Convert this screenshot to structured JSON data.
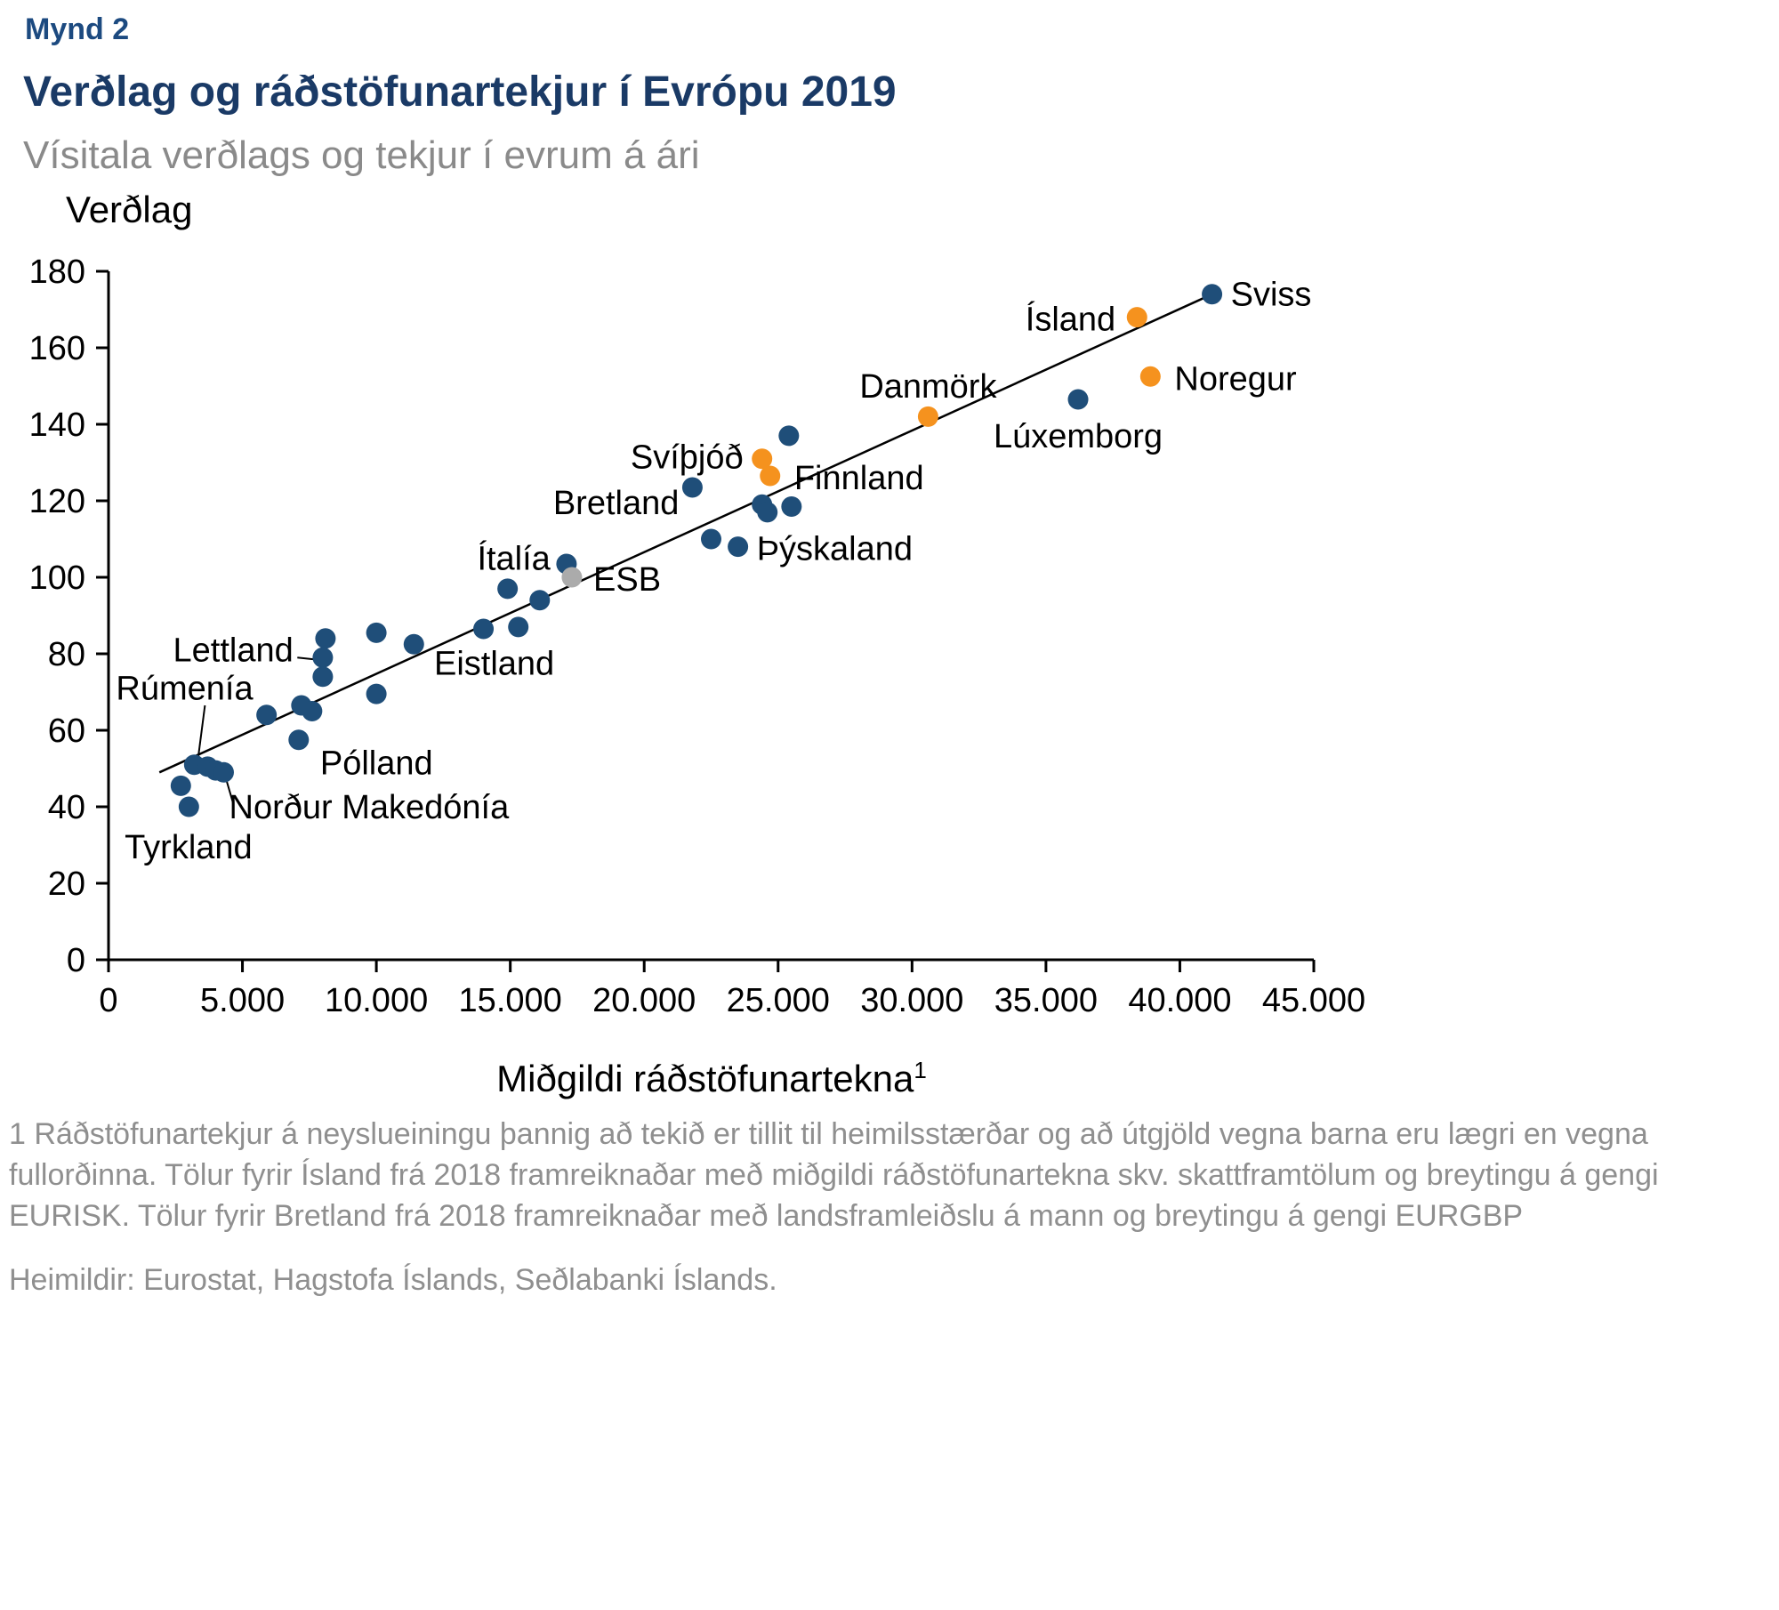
{
  "header": {
    "figure_label": "Mynd 2",
    "title": "Verðlag og ráðstöfunartekjur í Evrópu 2019",
    "subtitle": "Vísitala verðlags og tekjur í evrum á ári"
  },
  "footer": {
    "footnote": "1 Ráðstöfunartekjur á neyslueiningu þannig að tekið er tillit til heimilsstærðar og að útgjöld vegna barna eru lægri en vegna fullorðinna. Tölur fyrir Ísland frá 2018 framreiknaðar með miðgildi ráðstöfunartekna skv. skattframtölum og breytingu á gengi EURISK. Tölur fyrir Bretland frá 2018 framreiknaðar með landsframleiðslu á mann og breytingu á gengi EURGBP",
    "sources": "Heimildir: Eurostat, Hagstofa Íslands, Seðlabanki Íslands."
  },
  "chart_data": {
    "type": "scatter",
    "title": "Verðlag og ráðstöfunartekjur í Evrópu 2019",
    "subtitle": "Vísitala verðlags og tekjur í evrum á ári",
    "ylabel": "Verðlag",
    "xlabel": "Miðgildi ráðstöfunartekna",
    "xlabel_superscript": "1",
    "xlim": [
      0,
      45000
    ],
    "ylim": [
      0,
      180
    ],
    "x_ticks": [
      0,
      5000,
      10000,
      15000,
      20000,
      25000,
      30000,
      35000,
      40000,
      45000
    ],
    "x_tick_labels": [
      "0",
      "5.000",
      "10.000",
      "15.000",
      "20.000",
      "25.000",
      "30.000",
      "35.000",
      "40.000",
      "45.000"
    ],
    "y_ticks": [
      0,
      20,
      40,
      60,
      80,
      100,
      120,
      140,
      160,
      180
    ],
    "colors": {
      "default": "#1f4e79",
      "nordic": "#f5921e",
      "esb": "#ababab",
      "trend": "#000000"
    },
    "trendline": {
      "x1": 1900,
      "y1": 49,
      "x2": 41200,
      "y2": 174
    },
    "points": [
      {
        "label": "Tyrkland",
        "x": 3000,
        "y": 40,
        "color": "default"
      },
      {
        "label": null,
        "x": 2700,
        "y": 45.5,
        "color": "default"
      },
      {
        "label": "Rúmenía",
        "x": 3200,
        "y": 51,
        "color": "default"
      },
      {
        "label": null,
        "x": 3700,
        "y": 50.5,
        "color": "default"
      },
      {
        "label": null,
        "x": 4000,
        "y": 49.5,
        "color": "default"
      },
      {
        "label": "Norður Makedónía",
        "x": 4300,
        "y": 49,
        "color": "default"
      },
      {
        "label": null,
        "x": 5900,
        "y": 64,
        "color": "default"
      },
      {
        "label": null,
        "x": 7200,
        "y": 66.5,
        "color": "default"
      },
      {
        "label": null,
        "x": 7600,
        "y": 65,
        "color": "default"
      },
      {
        "label": "Pólland",
        "x": 7100,
        "y": 57.5,
        "color": "default"
      },
      {
        "label": null,
        "x": 8100,
        "y": 84,
        "color": "default"
      },
      {
        "label": "Lettland",
        "x": 8000,
        "y": 79,
        "color": "default"
      },
      {
        "label": null,
        "x": 8000,
        "y": 74,
        "color": "default"
      },
      {
        "label": null,
        "x": 10000,
        "y": 85.5,
        "color": "default"
      },
      {
        "label": null,
        "x": 10000,
        "y": 69.5,
        "color": "default"
      },
      {
        "label": null,
        "x": 11400,
        "y": 82.5,
        "color": "default"
      },
      {
        "label": "Eistland",
        "x": 14000,
        "y": 86.5,
        "color": "default"
      },
      {
        "label": null,
        "x": 15300,
        "y": 87,
        "color": "default"
      },
      {
        "label": null,
        "x": 14900,
        "y": 97,
        "color": "default"
      },
      {
        "label": null,
        "x": 16100,
        "y": 94,
        "color": "default"
      },
      {
        "label": "Ítalía",
        "x": 17100,
        "y": 103.5,
        "color": "default"
      },
      {
        "label": "ESB",
        "x": 17300,
        "y": 100,
        "color": "esb"
      },
      {
        "label": "Bretland",
        "x": 21800,
        "y": 123.5,
        "color": "default"
      },
      {
        "label": null,
        "x": 22500,
        "y": 110,
        "color": "default"
      },
      {
        "label": "Þýskaland",
        "x": 23500,
        "y": 108,
        "color": "default"
      },
      {
        "label": "Svíþjóð",
        "x": 24400,
        "y": 131,
        "color": "nordic"
      },
      {
        "label": "Finnland",
        "x": 24700,
        "y": 126.5,
        "color": "nordic"
      },
      {
        "label": null,
        "x": 24400,
        "y": 119,
        "color": "default"
      },
      {
        "label": null,
        "x": 24600,
        "y": 117,
        "color": "default"
      },
      {
        "label": null,
        "x": 25500,
        "y": 118.5,
        "color": "default"
      },
      {
        "label": null,
        "x": 25400,
        "y": 137,
        "color": "default"
      },
      {
        "label": "Danmörk",
        "x": 30600,
        "y": 142,
        "color": "nordic"
      },
      {
        "label": "Lúxemborg",
        "x": 36200,
        "y": 146.5,
        "color": "default"
      },
      {
        "label": "Ísland",
        "x": 38400,
        "y": 168,
        "color": "nordic"
      },
      {
        "label": "Noregur",
        "x": 38900,
        "y": 152.5,
        "color": "nordic"
      },
      {
        "label": "Sviss",
        "x": 41200,
        "y": 174,
        "color": "default"
      }
    ],
    "point_labels": [
      {
        "text": "Sviss",
        "x": 41900,
        "y": 171,
        "anchor": "start"
      },
      {
        "text": "Ísland",
        "x": 37600,
        "y": 164.5,
        "anchor": "end"
      },
      {
        "text": "Noregur",
        "x": 39800,
        "y": 149,
        "anchor": "start"
      },
      {
        "text": "Lúxemborg",
        "x": 36200,
        "y": 134,
        "anchor": "middle"
      },
      {
        "text": "Danmörk",
        "x": 30600,
        "y": 147,
        "anchor": "middle"
      },
      {
        "text": "Svíþjóð",
        "x": 23700,
        "y": 128.5,
        "anchor": "end"
      },
      {
        "text": "Finnland",
        "x": 25600,
        "y": 123,
        "anchor": "start"
      },
      {
        "text": "Bretland",
        "x": 21300,
        "y": 116.5,
        "anchor": "end"
      },
      {
        "text": "Þýskaland",
        "x": 24200,
        "y": 104.5,
        "anchor": "start"
      },
      {
        "text": "Ítalía",
        "x": 16500,
        "y": 102,
        "anchor": "end"
      },
      {
        "text": "ESB",
        "x": 18100,
        "y": 96.5,
        "anchor": "start"
      },
      {
        "text": "Eistland",
        "x": 14400,
        "y": 74.5,
        "anchor": "middle"
      },
      {
        "text": "Lettland",
        "x": 6900,
        "y": 78,
        "anchor": "end"
      },
      {
        "text": "Rúmenía",
        "x": 5400,
        "y": 68,
        "anchor": "end"
      },
      {
        "text": "Pólland",
        "x": 7900,
        "y": 48.5,
        "anchor": "start"
      },
      {
        "text": "Norður Makedónía",
        "x": 4500,
        "y": 37,
        "anchor": "start"
      },
      {
        "text": "Tyrkland",
        "x": 600,
        "y": 26.5,
        "anchor": "start"
      }
    ],
    "leader_lines": [
      {
        "x1": 7050,
        "y1": 79,
        "x2": 7750,
        "y2": 78.5
      },
      {
        "x1": 3600,
        "y1": 66.5,
        "x2": 3350,
        "y2": 53
      },
      {
        "x1": 4650,
        "y1": 41,
        "x2": 4400,
        "y2": 47
      }
    ]
  }
}
